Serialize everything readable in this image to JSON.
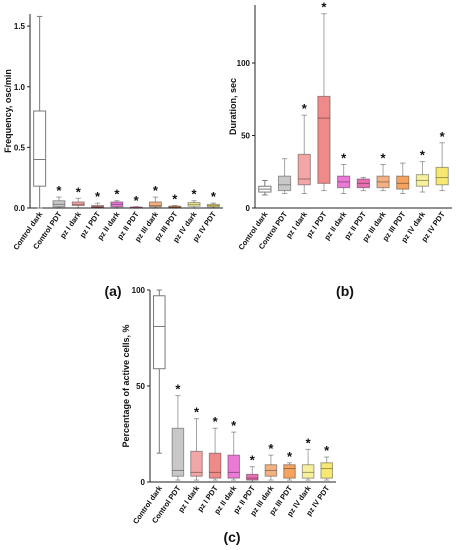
{
  "chart_data": [
    {
      "type": "box",
      "panel_label": "(a)",
      "ylabel": "Frequency, osc/min",
      "ylim": [
        0,
        1.6
      ],
      "yticks": [
        "0.0",
        "0.5",
        "1.0",
        "1.5"
      ],
      "ytick_values": [
        0,
        0.5,
        1.0,
        1.5
      ],
      "categories": [
        "Control dark",
        "Control PDT",
        "pz I dark",
        "pz I PDT",
        "pz II dark",
        "pz II PDT",
        "pz III dark",
        "pz III PDT",
        "pz IV dark",
        "pz IV PDT"
      ],
      "colors": [
        "#ffffff",
        "#c8c8c8",
        "#f2a6a6",
        "#ee8a8a",
        "#e97ad5",
        "#e96fb0",
        "#f3b183",
        "#f5a361",
        "#f6ef9b",
        "#f6e871"
      ],
      "boxes": [
        {
          "min": 0.0,
          "q1": 0.18,
          "median": 0.4,
          "q3": 0.8,
          "max": 1.58
        },
        {
          "min": 0.0,
          "q1": 0.01,
          "median": 0.03,
          "q3": 0.06,
          "max": 0.09
        },
        {
          "min": 0.0,
          "q1": 0.02,
          "median": 0.03,
          "q3": 0.05,
          "max": 0.08
        },
        {
          "min": 0.0,
          "q1": 0.005,
          "median": 0.01,
          "q3": 0.02,
          "max": 0.04
        },
        {
          "min": 0.0,
          "q1": 0.01,
          "median": 0.03,
          "q3": 0.05,
          "max": 0.06
        },
        {
          "min": 0.0,
          "q1": 0.002,
          "median": 0.005,
          "q3": 0.008,
          "max": 0.01
        },
        {
          "min": 0.0,
          "q1": 0.01,
          "median": 0.02,
          "q3": 0.05,
          "max": 0.09
        },
        {
          "min": 0.0,
          "q1": 0.003,
          "median": 0.008,
          "q3": 0.015,
          "max": 0.02
        },
        {
          "min": 0.0,
          "q1": 0.015,
          "median": 0.03,
          "q3": 0.045,
          "max": 0.06
        },
        {
          "min": 0.0,
          "q1": 0.01,
          "median": 0.02,
          "q3": 0.03,
          "max": 0.04
        }
      ],
      "significance": [
        false,
        true,
        true,
        true,
        true,
        true,
        true,
        true,
        true,
        true
      ],
      "annotation_symbol": "*"
    },
    {
      "type": "box",
      "panel_label": "(b)",
      "ylabel": "Duration, sec",
      "ylim": [
        0,
        140
      ],
      "yticks": [
        "0",
        "50",
        "100"
      ],
      "ytick_values": [
        0,
        50,
        100
      ],
      "categories": [
        "Control dark",
        "Control PDT",
        "pz I dark",
        "pz I PDT",
        "pz II dark",
        "pz II PDT",
        "pz III dark",
        "pz III PDT",
        "pz IV dark",
        "pz IV PDT"
      ],
      "colors": [
        "#ffffff",
        "#c8c8c8",
        "#f2a6a6",
        "#ee8a8a",
        "#e97ad5",
        "#e96fb0",
        "#f3b183",
        "#f5a361",
        "#f6ef9b",
        "#f6e871"
      ],
      "boxes": [
        {
          "min": 9,
          "q1": 11,
          "median": 13,
          "q3": 15,
          "max": 19
        },
        {
          "min": 10,
          "q1": 12,
          "median": 16,
          "q3": 22,
          "max": 34
        },
        {
          "min": 10,
          "q1": 16,
          "median": 20,
          "q3": 37,
          "max": 64
        },
        {
          "min": 12,
          "q1": 17,
          "median": 62,
          "q3": 77,
          "max": 134
        },
        {
          "min": 10,
          "q1": 14,
          "median": 18,
          "q3": 22,
          "max": 30
        },
        {
          "min": 12,
          "q1": 14,
          "median": 17,
          "q3": 20,
          "max": 21
        },
        {
          "min": 12,
          "q1": 14,
          "median": 18,
          "q3": 22,
          "max": 30
        },
        {
          "min": 10,
          "q1": 13,
          "median": 17,
          "q3": 22,
          "max": 31
        },
        {
          "min": 11,
          "q1": 15,
          "median": 19,
          "q3": 23,
          "max": 32
        },
        {
          "min": 12,
          "q1": 16,
          "median": 21,
          "q3": 28,
          "max": 45
        }
      ],
      "significance": [
        false,
        false,
        true,
        true,
        true,
        false,
        true,
        false,
        true,
        true
      ],
      "annotation_symbol": "*"
    },
    {
      "type": "box",
      "panel_label": "(c)",
      "ylabel": "Percentage of active cells, %",
      "ylim": [
        0,
        100
      ],
      "yticks": [
        "0",
        "50",
        "100"
      ],
      "ytick_values": [
        0,
        50,
        100
      ],
      "categories": [
        "Control dark",
        "Control PDT",
        "pz I dark",
        "pz I PDT",
        "pz II dark",
        "pz II PDT",
        "pz III dark",
        "pz III PDT",
        "pz IV dark",
        "pz IV PDT"
      ],
      "colors": [
        "#ffffff",
        "#c8c8c8",
        "#f2a6a6",
        "#ee8a8a",
        "#e97ad5",
        "#e96fb0",
        "#f3b183",
        "#f5a361",
        "#f6ef9b",
        "#f6e871"
      ],
      "boxes": [
        {
          "min": 15,
          "q1": 59,
          "median": 81,
          "q3": 97,
          "max": 100
        },
        {
          "min": 1,
          "q1": 3,
          "median": 6,
          "q3": 28,
          "max": 45
        },
        {
          "min": 1,
          "q1": 3,
          "median": 5,
          "q3": 16,
          "max": 33
        },
        {
          "min": 1,
          "q1": 2,
          "median": 5,
          "q3": 15,
          "max": 28
        },
        {
          "min": 1,
          "q1": 2,
          "median": 5,
          "q3": 14,
          "max": 26
        },
        {
          "min": 0,
          "q1": 1,
          "median": 2,
          "q3": 4,
          "max": 8
        },
        {
          "min": 1,
          "q1": 3,
          "median": 6,
          "q3": 9,
          "max": 14
        },
        {
          "min": 1,
          "q1": 2,
          "median": 7,
          "q3": 9,
          "max": 10
        },
        {
          "min": 1,
          "q1": 2,
          "median": 5,
          "q3": 9,
          "max": 17
        },
        {
          "min": 1,
          "q1": 2,
          "median": 7,
          "q3": 10,
          "max": 13
        }
      ],
      "significance": [
        false,
        true,
        true,
        true,
        true,
        true,
        true,
        true,
        true,
        true
      ],
      "annotation_symbol": "*"
    }
  ]
}
